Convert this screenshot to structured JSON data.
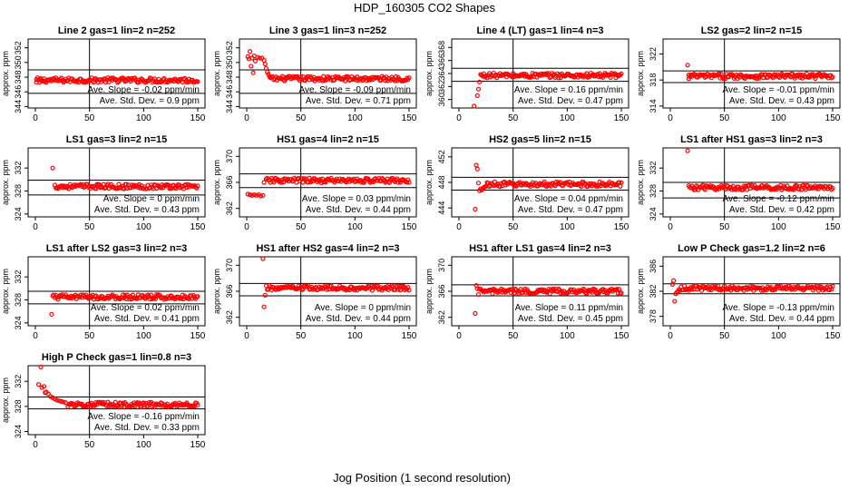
{
  "figure": {
    "title": "HDP_160305  CO2 Shapes",
    "xlabel": "Jog Position (1 second resolution)"
  },
  "colors": {
    "points": "#ff0000",
    "axes": "#000000",
    "background": "#ffffff"
  },
  "chart_data": [
    {
      "type": "scatter",
      "title": "Line 2 gas=1 lin=2 n=252",
      "ylabel": "approx. ppm",
      "xlim": [
        0,
        150
      ],
      "xticks": [
        0,
        50,
        100,
        150
      ],
      "ylim": [
        343.8,
        353.2
      ],
      "yticks": [
        344,
        346,
        348,
        350,
        352
      ],
      "hlines": [
        349.0,
        345.8
      ],
      "vline": 50,
      "x_range": [
        1,
        150
      ],
      "level": 347.6,
      "transient": [
        [
          1,
          347.3
        ],
        [
          4,
          347.3
        ],
        [
          8,
          347.4
        ]
      ],
      "annotation": [
        "Ave. Slope = -0.02  ppm/min",
        "Ave. Std. Dev. = 0.9  ppm"
      ]
    },
    {
      "type": "scatter",
      "title": "Line 3 gas=1 lin=3 n=252",
      "ylabel": "approx. ppm",
      "xlim": [
        0,
        150
      ],
      "xticks": [
        0,
        50,
        100,
        150
      ],
      "ylim": [
        343.8,
        353.2
      ],
      "yticks": [
        344,
        346,
        348,
        350,
        352
      ],
      "hlines": [
        349.0,
        345.8
      ],
      "vline": 50,
      "x_range": [
        22,
        150
      ],
      "level": 347.8,
      "transient": [
        [
          1,
          350.8
        ],
        [
          2,
          350.5
        ],
        [
          3,
          351.5
        ],
        [
          4,
          349.5
        ],
        [
          5,
          350.6
        ],
        [
          6,
          348.6
        ],
        [
          7,
          350.9
        ],
        [
          8,
          350.2
        ],
        [
          10,
          350.7
        ],
        [
          12,
          350.6
        ],
        [
          14,
          350.6
        ],
        [
          16,
          350.3
        ],
        [
          17,
          349.8
        ],
        [
          18,
          349.2
        ],
        [
          19,
          348.7
        ],
        [
          20,
          348.4
        ],
        [
          21,
          348.1
        ]
      ],
      "annotation": [
        "Ave. Slope = -0.09  ppm/min",
        "Ave. Std. Dev. = 0.71  ppm"
      ]
    },
    {
      "type": "scatter",
      "title": "Line 4 (LT) gas=1 lin=4 n=3",
      "ylabel": "approx. ppm",
      "xlim": [
        0,
        150
      ],
      "xticks": [
        0,
        50,
        100,
        150
      ],
      "ylim": [
        358.7,
        369.3
      ],
      "yticks": [
        360,
        362,
        364,
        366,
        368
      ],
      "hlines": [
        364.8,
        362.8
      ],
      "vline": 50,
      "x_range": [
        20,
        150
      ],
      "level": 363.7,
      "transient": [
        [
          14,
          359.0
        ],
        [
          17,
          360.6
        ],
        [
          18,
          361.6
        ],
        [
          19,
          362.7
        ]
      ],
      "annotation": [
        "Ave. Slope = 0.16  ppm/min",
        "Ave. Std. Dev. = 0.47  ppm"
      ]
    },
    {
      "type": "scatter",
      "title": "LS2 gas=2 lin=2 n=15",
      "ylabel": "approx. ppm",
      "xlim": [
        0,
        150
      ],
      "xticks": [
        0,
        50,
        100,
        150
      ],
      "ylim": [
        313.7,
        324.3
      ],
      "yticks": [
        314,
        318,
        322
      ],
      "hlines": [
        319.4,
        317.6
      ],
      "vline": 50,
      "x_range": [
        17,
        150
      ],
      "level": 318.6,
      "transient": [
        [
          16,
          320.3
        ],
        [
          17,
          318.2
        ]
      ],
      "annotation": [
        "Ave. Slope = -0.01  ppm/min",
        "Ave. Std. Dev. = 0.43  ppm"
      ]
    },
    {
      "type": "scatter",
      "title": "LS1 gas=3 lin=2 n=15",
      "ylabel": "approx. ppm",
      "xlim": [
        0,
        150
      ],
      "xticks": [
        0,
        50,
        100,
        150
      ],
      "ylim": [
        323.5,
        335.5
      ],
      "yticks": [
        324,
        328,
        332
      ],
      "hlines": [
        329.9,
        327.3
      ],
      "vline": 50,
      "x_range": [
        18,
        150
      ],
      "level": 328.8,
      "transient": [
        [
          16,
          332.0
        ]
      ],
      "annotation": [
        "Ave. Slope = 0  ppm/min",
        "Ave. Std. Dev. = 0.43  ppm"
      ]
    },
    {
      "type": "scatter",
      "title": "HS1 gas=4 lin=2 n=15",
      "ylabel": "approx. ppm",
      "xlim": [
        0,
        150
      ],
      "xticks": [
        0,
        50,
        100,
        150
      ],
      "ylim": [
        360.7,
        371.3
      ],
      "yticks": [
        362,
        366,
        370
      ],
      "hlines": [
        367.3,
        365.2
      ],
      "vline": 50,
      "x_range": [
        18,
        150
      ],
      "level": 366.3,
      "transient": [
        [
          1,
          364.2
        ],
        [
          3,
          364.1
        ],
        [
          5,
          364.0
        ],
        [
          7,
          364.1
        ],
        [
          9,
          364.0
        ],
        [
          11,
          364.1
        ],
        [
          13,
          363.9
        ],
        [
          15,
          364.0
        ],
        [
          16,
          366.0
        ]
      ],
      "annotation": [
        "Ave. Slope = 0.03  ppm/min",
        "Ave. Std. Dev. = 0.44  ppm"
      ]
    },
    {
      "type": "scatter",
      "title": "HS2 gas=5 lin=2 n=15",
      "ylabel": "approx. ppm",
      "xlim": [
        0,
        150
      ],
      "xticks": [
        0,
        50,
        100,
        150
      ],
      "ylim": [
        442.6,
        453.4
      ],
      "yticks": [
        444,
        448,
        452
      ],
      "hlines": [
        448.8,
        446.8
      ],
      "vline": 50,
      "x_range": [
        26,
        150
      ],
      "level": 447.7,
      "transient": [
        [
          15,
          443.8
        ],
        [
          16,
          450.7
        ],
        [
          17,
          450.1
        ],
        [
          18,
          447.9
        ],
        [
          19,
          446.7
        ],
        [
          20,
          447.0
        ],
        [
          21,
          446.8
        ],
        [
          22,
          447.0
        ],
        [
          23,
          447.2
        ],
        [
          24,
          447.3
        ],
        [
          25,
          447.4
        ]
      ],
      "annotation": [
        "Ave. Slope = 0.04  ppm/min",
        "Ave. Std. Dev. = 0.47  ppm"
      ]
    },
    {
      "type": "scatter",
      "title": "LS1 after HS1 gas=3 lin=2 n=3",
      "ylabel": "approx. ppm",
      "xlim": [
        0,
        150
      ],
      "xticks": [
        0,
        50,
        100,
        150
      ],
      "ylim": [
        323.5,
        335.5
      ],
      "yticks": [
        324,
        328,
        332
      ],
      "hlines": [
        329.5,
        326.8
      ],
      "vline": 50,
      "x_range": [
        17,
        150
      ],
      "level": 328.6,
      "transient": [
        [
          16,
          335.0
        ]
      ],
      "annotation": [
        "Ave. Slope = -0.12  ppm/min",
        "Ave. Std. Dev. = 0.42  ppm"
      ]
    },
    {
      "type": "scatter",
      "title": "LS1 after LS2 gas=3 lin=2 n=3",
      "ylabel": "approx. ppm",
      "xlim": [
        0,
        150
      ],
      "xticks": [
        0,
        50,
        100,
        150
      ],
      "ylim": [
        323.5,
        335.5
      ],
      "yticks": [
        324,
        328,
        332
      ],
      "hlines": [
        329.5,
        327.3
      ],
      "vline": 50,
      "x_range": [
        17,
        150
      ],
      "level": 328.5,
      "transient": [
        [
          15,
          325.5
        ],
        [
          16,
          328.7
        ]
      ],
      "annotation": [
        "Ave. Slope = 0.02  ppm/min",
        "Ave. Std. Dev. = 0.41  ppm"
      ]
    },
    {
      "type": "scatter",
      "title": "HS1 after HS2 gas=4 lin=2 n=3",
      "ylabel": "approx. ppm",
      "xlim": [
        0,
        150
      ],
      "xticks": [
        0,
        50,
        100,
        150
      ],
      "ylim": [
        360.7,
        371.3
      ],
      "yticks": [
        362,
        366,
        370
      ],
      "hlines": [
        367.2,
        365.3
      ],
      "vline": 50,
      "x_range": [
        18,
        150
      ],
      "level": 366.5,
      "transient": [
        [
          15,
          371.0
        ],
        [
          16,
          363.6
        ],
        [
          17,
          365.4
        ]
      ],
      "annotation": [
        "Ave. Slope = 0  ppm/min",
        "Ave. Std. Dev. = 0.44  ppm"
      ]
    },
    {
      "type": "scatter",
      "title": "HS1 after LS1 gas=4 lin=2 n=3",
      "ylabel": "approx. ppm",
      "xlim": [
        0,
        150
      ],
      "xticks": [
        0,
        50,
        100,
        150
      ],
      "ylim": [
        360.7,
        371.3
      ],
      "yticks": [
        362,
        366,
        370
      ],
      "hlines": [
        367.0,
        365.3
      ],
      "vline": 50,
      "x_range": [
        19,
        150
      ],
      "level": 366.0,
      "transient": [
        [
          15,
          362.6
        ],
        [
          16,
          366.9
        ],
        [
          17,
          366.4
        ],
        [
          18,
          365.5
        ]
      ],
      "annotation": [
        "Ave. Slope = 0.11  ppm/min",
        "Ave. Std. Dev. = 0.45  ppm"
      ]
    },
    {
      "type": "scatter",
      "title": "Low P Check gas=1.2 lin=2 n=6",
      "ylabel": "approx. ppm",
      "xlim": [
        0,
        150
      ],
      "xticks": [
        0,
        50,
        100,
        150
      ],
      "ylim": [
        376.5,
        387.5
      ],
      "yticks": [
        378,
        382,
        386
      ],
      "hlines": [
        383.2,
        381.6
      ],
      "vline": 50,
      "x_range": [
        9,
        150
      ],
      "level": 382.5,
      "transient": [
        [
          2,
          383.1
        ],
        [
          3,
          383.7
        ],
        [
          4,
          380.4
        ],
        [
          5,
          381.6
        ],
        [
          6,
          381.8
        ],
        [
          7,
          382.0
        ],
        [
          8,
          382.3
        ]
      ],
      "annotation": [
        "Ave. Slope = -0.13  ppm/min",
        "Ave. Std. Dev. = 0.44  ppm"
      ]
    },
    {
      "type": "scatter",
      "title": "High P Check gas=1 lin=0.8 n=3",
      "ylabel": "approx. ppm",
      "xlim": [
        0,
        150
      ],
      "xticks": [
        0,
        50,
        100,
        150
      ],
      "ylim": [
        323.5,
        334.5
      ],
      "yticks": [
        324,
        328,
        332
      ],
      "hlines": [
        329.5,
        327.6
      ],
      "vline": 50,
      "x_range": [
        30,
        150
      ],
      "level": 328.3,
      "transient": [
        [
          3,
          331.5
        ],
        [
          5,
          334.3
        ],
        [
          6,
          331.0
        ],
        [
          8,
          331.2
        ],
        [
          9,
          330.2
        ],
        [
          10,
          330.3
        ],
        [
          12,
          330.0
        ],
        [
          14,
          329.6
        ],
        [
          16,
          329.4
        ],
        [
          18,
          329.2
        ],
        [
          20,
          329.0
        ],
        [
          22,
          328.9
        ],
        [
          24,
          328.8
        ],
        [
          26,
          328.7
        ],
        [
          28,
          328.6
        ]
      ],
      "annotation": [
        "Ave. Slope = -0.16  ppm/min",
        "Ave. Std. Dev. = 0.33  ppm"
      ]
    }
  ]
}
